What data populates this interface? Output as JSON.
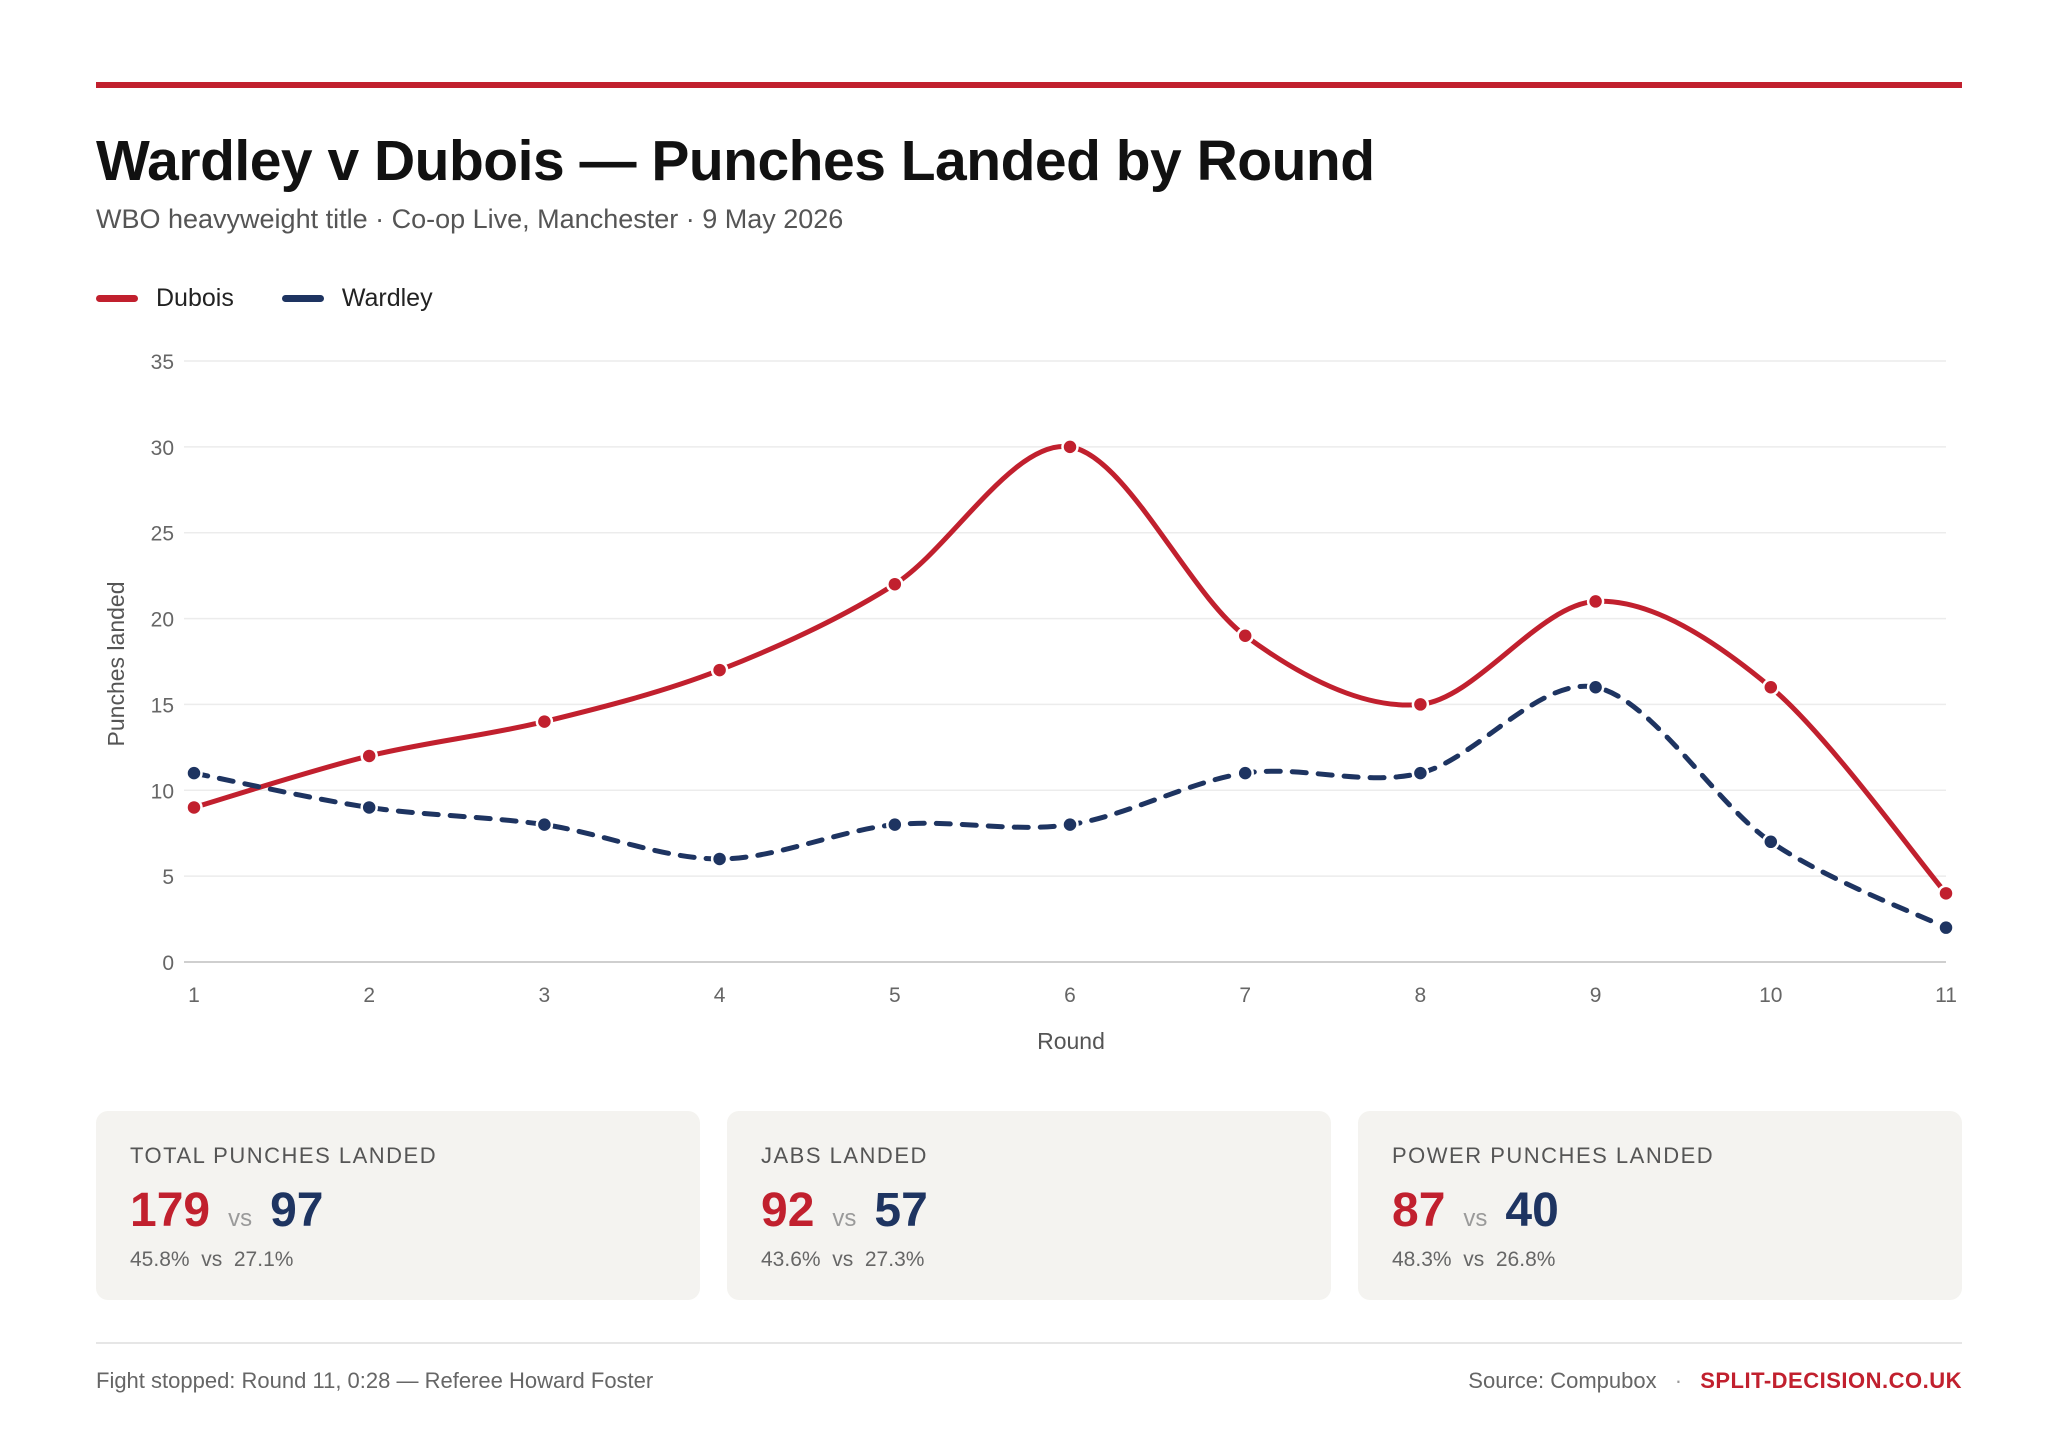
{
  "header": {
    "title": "Wardley v Dubois — Punches Landed by Round",
    "subtitle": "WBO heavyweight title · Co-op Live, Manchester · 9 May 2026"
  },
  "colors": {
    "accent": "#c1202e",
    "dubois": "#c1202e",
    "wardley": "#1e3461"
  },
  "chart_data": {
    "type": "line",
    "title": "Wardley v Dubois — Punches Landed by Round",
    "xlabel": "Round",
    "ylabel": "Punches landed",
    "x": [
      1,
      2,
      3,
      4,
      5,
      6,
      7,
      8,
      9,
      10,
      11
    ],
    "ylim": [
      0,
      35
    ],
    "yticks": [
      0,
      5,
      10,
      15,
      20,
      25,
      30,
      35
    ],
    "grid": true,
    "legend_position": "top-left",
    "series": [
      {
        "name": "Dubois",
        "color": "#c1202e",
        "style": "solid",
        "values": [
          9,
          12,
          14,
          17,
          22,
          30,
          19,
          15,
          21,
          16,
          4
        ]
      },
      {
        "name": "Wardley",
        "color": "#1e3461",
        "style": "dashed",
        "values": [
          11,
          9,
          8,
          6,
          8,
          8,
          11,
          11,
          16,
          7,
          2
        ]
      }
    ]
  },
  "stats": [
    {
      "label": "TOTAL PUNCHES LANDED",
      "a": "179",
      "b": "97",
      "vs": "vs",
      "pcts": "45.8%  vs  27.1%"
    },
    {
      "label": "JABS LANDED",
      "a": "92",
      "b": "57",
      "vs": "vs",
      "pcts": "43.6%  vs  27.3%"
    },
    {
      "label": "POWER PUNCHES LANDED",
      "a": "87",
      "b": "40",
      "vs": "vs",
      "pcts": "48.3%  vs  26.8%"
    }
  ],
  "footer": {
    "note": "Fight stopped: Round 11, 0:28 — Referee Howard Foster",
    "source": "Source: Compubox",
    "separator": "·",
    "brand": "SPLIT-DECISION.CO.UK"
  }
}
